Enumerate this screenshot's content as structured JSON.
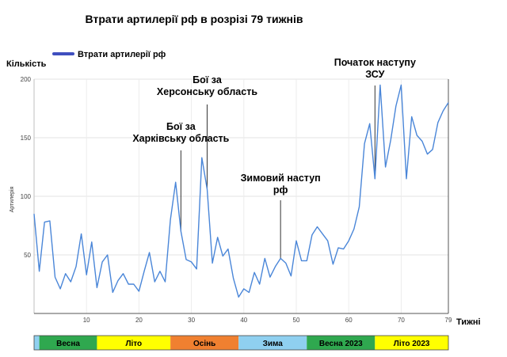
{
  "chart_data": {
    "type": "line",
    "title": "Втрати  артилерії рф в розрізі 79 тижнів",
    "legend": {
      "placement": "top-left"
    },
    "ylabel_top": "Кількість",
    "ylabel_rotated": "Артилерія",
    "xlabel": "Тижні",
    "xlim": [
      0,
      79
    ],
    "ylim": [
      0,
      200
    ],
    "grid": true,
    "x_ticks": [
      "10",
      "20",
      "30",
      "40",
      "50",
      "60",
      "70",
      "79"
    ],
    "y_ticks": [
      "50",
      "100",
      "150",
      "200"
    ],
    "series": [
      {
        "name": "Втрати артилерії рф",
        "color": "#4a86d8",
        "x": [
          0,
          1,
          2,
          3,
          4,
          5,
          6,
          7,
          8,
          9,
          10,
          11,
          12,
          13,
          14,
          15,
          16,
          17,
          18,
          19,
          20,
          21,
          22,
          23,
          24,
          25,
          26,
          27,
          28,
          29,
          30,
          31,
          32,
          33,
          34,
          35,
          36,
          37,
          38,
          39,
          40,
          41,
          42,
          43,
          44,
          45,
          46,
          47,
          48,
          49,
          50,
          51,
          52,
          53,
          54,
          55,
          56,
          57,
          58,
          59,
          60,
          61,
          62,
          63,
          64,
          65,
          66,
          67,
          68,
          69,
          70,
          71,
          72,
          73,
          74,
          75,
          76,
          77,
          78,
          79
        ],
        "y": [
          85,
          36,
          78,
          79,
          31,
          21,
          34,
          27,
          40,
          68,
          33,
          61,
          22,
          44,
          50,
          18,
          28,
          34,
          25,
          25,
          19,
          36,
          52,
          27,
          36,
          27,
          80,
          112,
          70,
          46,
          44,
          38,
          133,
          106,
          43,
          65,
          49,
          55,
          30,
          14,
          21,
          18,
          35,
          25,
          47,
          31,
          40,
          47,
          43,
          32,
          62,
          45,
          45,
          67,
          74,
          68,
          62,
          42,
          56,
          55,
          62,
          72,
          91,
          145,
          162,
          115,
          195,
          125,
          148,
          177,
          195,
          115,
          168,
          152,
          147,
          136,
          140,
          163,
          173,
          180
        ]
      }
    ],
    "annotations": [
      {
        "lines": [
          "Бої за",
          "Херсонську область"
        ],
        "x": 33
      },
      {
        "lines": [
          "Бої за",
          "Харківську область"
        ],
        "x": 28
      },
      {
        "lines": [
          "Зимовий наступ",
          "рф"
        ],
        "x": 47
      },
      {
        "lines": [
          "Початок наступу",
          "ЗСУ"
        ],
        "x": 65
      }
    ],
    "seasons": [
      {
        "label": "",
        "color": "#8fd0f0",
        "from": 0,
        "to": 1
      },
      {
        "label": "Весна",
        "color": "#2fa84f",
        "from": 1,
        "to": 12
      },
      {
        "label": "Літо",
        "color": "#ffff00",
        "from": 12,
        "to": 26
      },
      {
        "label": "Осінь",
        "color": "#f08030",
        "from": 26,
        "to": 39
      },
      {
        "label": "Зима",
        "color": "#8fd0f0",
        "from": 39,
        "to": 52
      },
      {
        "label": "Весна 2023",
        "color": "#2fa84f",
        "from": 52,
        "to": 65
      },
      {
        "label": "Літо 2023",
        "color": "#ffff00",
        "from": 65,
        "to": 79
      }
    ]
  }
}
